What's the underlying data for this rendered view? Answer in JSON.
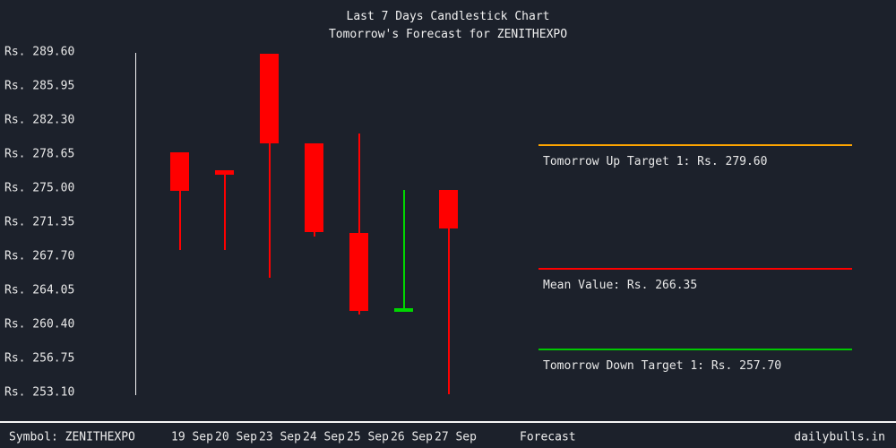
{
  "page": {
    "title_line1": "Last 7 Days Candlestick Chart",
    "title_line2": "Tomorrow's Forecast for ZENITHEXPO"
  },
  "colors": {
    "background": "#1c212b",
    "text": "#e8e8e8",
    "axis_line": "#f5f5f5",
    "bearish": "#ff0000",
    "bullish": "#00d600",
    "up_target_line": "#ffa500",
    "mean_line": "#ff0000",
    "down_target_line": "#00c800"
  },
  "chart_data": {
    "type": "candlestick",
    "title": "Last 7 Days Candlestick Chart",
    "subtitle": "Tomorrow's Forecast for ZENITHEXPO",
    "symbol": "ZENITHEXPO",
    "currency_prefix": "Rs.",
    "ylim": [
      253.1,
      289.6
    ],
    "y_tick_step": 3.65,
    "grid": false,
    "y_tick_labels": [
      "Rs. 289.60",
      "Rs. 285.95",
      "Rs. 282.30",
      "Rs. 278.65",
      "Rs. 275.00",
      "Rs. 271.35",
      "Rs. 267.70",
      "Rs. 264.05",
      "Rs. 260.40",
      "Rs. 256.75",
      "Rs. 253.10"
    ],
    "candles": [
      {
        "date": "19 Sep",
        "open": 278.85,
        "high": 278.85,
        "low": 268.35,
        "close": 274.7,
        "color": "red"
      },
      {
        "date": "20 Sep",
        "open": 276.9,
        "high": 276.9,
        "low": 268.35,
        "close": 276.45,
        "color": "red"
      },
      {
        "date": "23 Sep",
        "open": 289.45,
        "high": 289.45,
        "low": 265.35,
        "close": 279.8,
        "color": "red"
      },
      {
        "date": "24 Sep",
        "open": 279.8,
        "high": 279.8,
        "low": 269.8,
        "close": 270.25,
        "color": "red"
      },
      {
        "date": "25 Sep",
        "open": 270.15,
        "high": 280.9,
        "low": 261.5,
        "close": 261.85,
        "color": "red"
      },
      {
        "date": "26 Sep",
        "open": 261.7,
        "high": 274.8,
        "low": 261.7,
        "close": 262.1,
        "color": "green"
      },
      {
        "date": "27 Sep",
        "open": 274.85,
        "high": 274.85,
        "low": 252.9,
        "close": 270.7,
        "color": "red"
      }
    ],
    "forecast_lines": [
      {
        "label": "Tomorrow Up Target 1: Rs. 279.60",
        "value": 279.6,
        "color": "#ffa500"
      },
      {
        "label": "Mean Value: Rs. 266.35",
        "value": 266.35,
        "color": "#ff0000"
      },
      {
        "label": "Tomorrow Down Target 1: Rs. 257.70",
        "value": 257.7,
        "color": "#00c800"
      }
    ]
  },
  "footer": {
    "symbol_label": "Symbol: ZENITHEXPO",
    "dates": [
      "19 Sep",
      "20 Sep",
      "23 Sep",
      "24 Sep",
      "25 Sep",
      "26 Sep",
      "27 Sep"
    ],
    "forecast_label": "Forecast",
    "watermark": "dailybulls.in"
  }
}
